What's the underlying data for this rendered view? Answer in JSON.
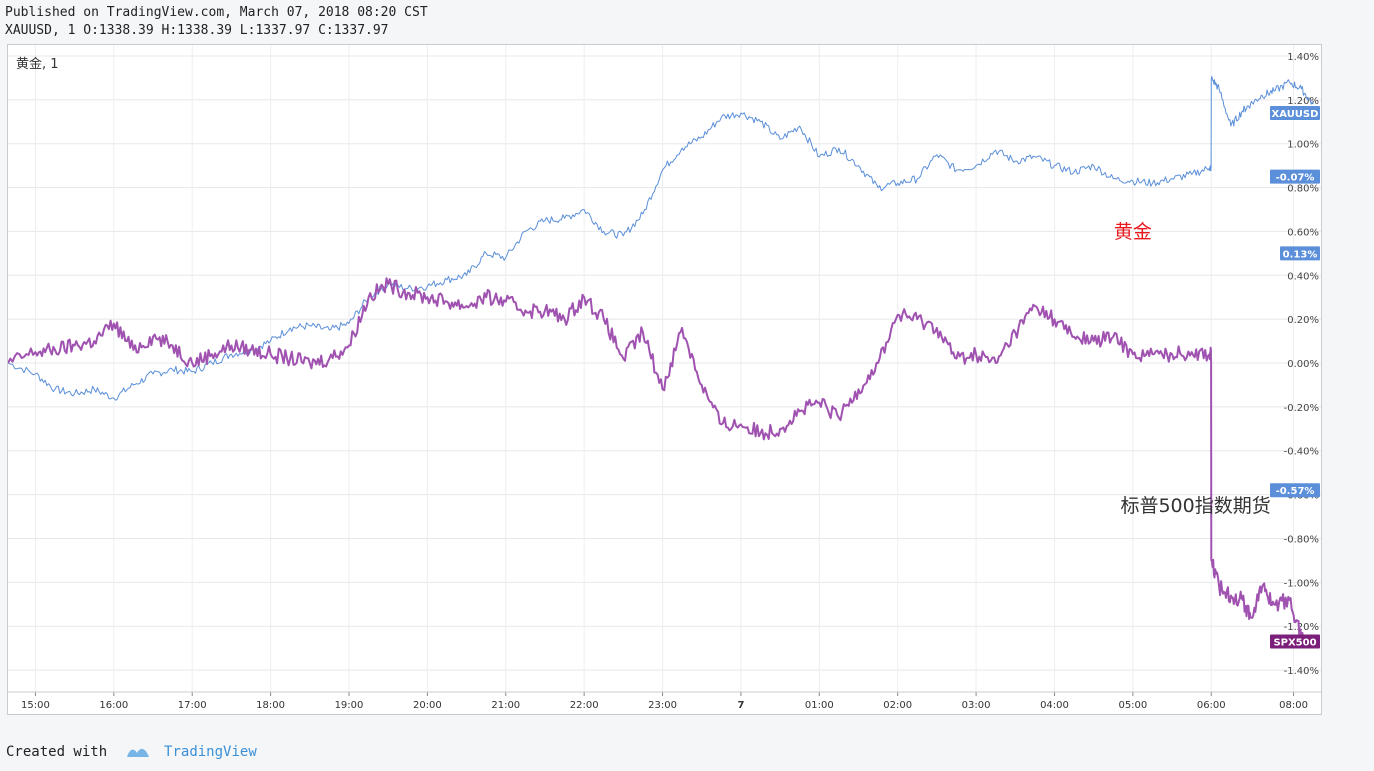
{
  "header": {
    "published": "Published on TradingView.com, March 07, 2018 08:20 CST",
    "ohlc": "XAUUSD, 1 O:1338.39 H:1338.39 L:1337.97 C:1337.97"
  },
  "footer": {
    "created_with": "Created with",
    "brand": "TradingView"
  },
  "colors": {
    "gold": "#5b8fd9",
    "spx": "#a052b0",
    "spx_badge": "#7b1f7b",
    "grid": "#e6e8eb",
    "annotation_red": "#e8181c"
  },
  "chart_data": {
    "type": "line",
    "pane_label": "黄金, 1",
    "ylim": [
      -1.5,
      1.45
    ],
    "y_ticks": [
      1.4,
      1.2,
      1.0,
      0.8,
      0.6,
      0.4,
      0.2,
      0.0,
      -0.2,
      -0.4,
      -0.6,
      -0.8,
      -1.0,
      -1.2,
      -1.4
    ],
    "y_tick_labels": [
      "1.40%",
      "1.20%",
      "1.00%",
      "0.80%",
      "0.60%",
      "0.40%",
      "0.20%",
      "0.00%",
      "-0.20%",
      "-0.40%",
      "-0.60%",
      "-0.80%",
      "-1.00%",
      "-1.20%",
      "-1.40%"
    ],
    "x_ticks": [
      0,
      1,
      2,
      3,
      4,
      5,
      6,
      7,
      8,
      9,
      10,
      11,
      12,
      13,
      14,
      15,
      16
    ],
    "x_tick_labels": [
      "15:00",
      "16:00",
      "17:00",
      "18:00",
      "19:00",
      "20:00",
      "21:00",
      "22:00",
      "23:00",
      "7",
      "01:00",
      "02:00",
      "03:00",
      "04:00",
      "05:00",
      "06:00",
      "08:00"
    ],
    "x_tick_positions": [
      0.0,
      1.0,
      2.0,
      3.0,
      4.0,
      5.0,
      6.0,
      7.0,
      8.0,
      9.0,
      10.0,
      11.0,
      12.0,
      13.0,
      14.0,
      15.0,
      16.05
    ],
    "xlim": [
      -0.35,
      16.4
    ],
    "series": [
      {
        "name": "XAUUSD",
        "color": "#5b8fd9",
        "x": [
          -0.35,
          0.0,
          0.25,
          0.5,
          0.75,
          1.0,
          1.25,
          1.5,
          1.75,
          2.0,
          2.25,
          2.5,
          2.75,
          3.0,
          3.25,
          3.5,
          3.75,
          4.0,
          4.25,
          4.5,
          4.75,
          5.0,
          5.25,
          5.5,
          5.75,
          6.0,
          6.25,
          6.5,
          6.75,
          7.0,
          7.25,
          7.5,
          7.75,
          8.0,
          8.25,
          8.5,
          8.75,
          9.0,
          9.25,
          9.5,
          9.75,
          10.0,
          10.25,
          10.5,
          10.75,
          11.0,
          11.25,
          11.5,
          11.75,
          12.0,
          12.25,
          12.5,
          12.75,
          13.0,
          13.25,
          13.5,
          13.75,
          14.0,
          14.25,
          14.5,
          14.75,
          14.98,
          15.0,
          15.1,
          15.25,
          15.4,
          15.5,
          15.65,
          15.8,
          16.0,
          16.15,
          16.3
        ],
        "y": [
          0.0,
          -0.05,
          -0.12,
          -0.14,
          -0.12,
          -0.16,
          -0.1,
          -0.05,
          -0.03,
          -0.04,
          0.0,
          0.04,
          0.06,
          0.1,
          0.16,
          0.17,
          0.15,
          0.18,
          0.3,
          0.36,
          0.34,
          0.35,
          0.38,
          0.4,
          0.5,
          0.48,
          0.6,
          0.65,
          0.66,
          0.7,
          0.6,
          0.58,
          0.68,
          0.88,
          0.98,
          1.03,
          1.12,
          1.14,
          1.1,
          1.02,
          1.08,
          0.94,
          0.98,
          0.9,
          0.8,
          0.82,
          0.84,
          0.95,
          0.88,
          0.9,
          0.97,
          0.92,
          0.94,
          0.9,
          0.87,
          0.9,
          0.84,
          0.83,
          0.82,
          0.84,
          0.86,
          0.89,
          1.3,
          1.25,
          1.08,
          1.15,
          1.18,
          1.22,
          1.24,
          1.28,
          1.25,
          1.18
        ]
      },
      {
        "name": "SPX500",
        "color": "#a052b0",
        "x": [
          -0.35,
          0.0,
          0.25,
          0.5,
          0.75,
          1.0,
          1.25,
          1.5,
          1.75,
          2.0,
          2.25,
          2.5,
          2.75,
          3.0,
          3.25,
          3.5,
          3.75,
          4.0,
          4.25,
          4.5,
          4.75,
          5.0,
          5.25,
          5.5,
          5.75,
          6.0,
          6.25,
          6.5,
          6.75,
          7.0,
          7.25,
          7.5,
          7.75,
          8.0,
          8.25,
          8.5,
          8.75,
          9.0,
          9.25,
          9.5,
          9.75,
          10.0,
          10.25,
          10.5,
          10.75,
          11.0,
          11.25,
          11.5,
          11.75,
          12.0,
          12.25,
          12.5,
          12.75,
          13.0,
          13.25,
          13.5,
          13.75,
          14.0,
          14.25,
          14.5,
          14.75,
          14.98,
          15.0,
          15.1,
          15.25,
          15.4,
          15.5,
          15.65,
          15.8,
          16.0,
          16.15,
          16.3
        ],
        "y": [
          0.0,
          0.05,
          0.06,
          0.08,
          0.1,
          0.18,
          0.06,
          0.12,
          0.08,
          0.0,
          0.04,
          0.08,
          0.06,
          0.04,
          0.02,
          0.0,
          0.02,
          0.08,
          0.3,
          0.36,
          0.32,
          0.3,
          0.28,
          0.26,
          0.3,
          0.28,
          0.24,
          0.24,
          0.2,
          0.3,
          0.2,
          0.02,
          0.14,
          -0.12,
          0.16,
          -0.1,
          -0.28,
          -0.28,
          -0.32,
          -0.3,
          -0.22,
          -0.18,
          -0.25,
          -0.12,
          0.0,
          0.22,
          0.2,
          0.16,
          0.02,
          0.04,
          0.0,
          0.14,
          0.26,
          0.2,
          0.12,
          0.1,
          0.12,
          0.04,
          0.04,
          0.04,
          0.05,
          0.04,
          -0.9,
          -1.02,
          -1.06,
          -1.08,
          -1.16,
          -1.02,
          -1.1,
          -1.08,
          -1.25,
          -1.27
        ]
      }
    ],
    "price_badges": [
      {
        "label": "XAUUSD",
        "y": 1.14,
        "color": "#5b8fd9"
      },
      {
        "label": "-0.07%",
        "y": 0.85,
        "color": "#5b8fd9"
      },
      {
        "label": "0.13%",
        "y": 0.5,
        "color": "#5b8fd9"
      },
      {
        "label": "-0.57%",
        "y": -0.58,
        "color": "#5b8fd9"
      },
      {
        "label": "SPX500",
        "y": -1.27,
        "color": "#7b1f7b"
      }
    ],
    "annotations": [
      {
        "text": "黄金",
        "x": 14.0,
        "y": 0.57,
        "color": "#e8181c"
      },
      {
        "text": "标普500指数期货",
        "x": 14.8,
        "y": -0.68,
        "color": "#333333"
      }
    ]
  }
}
